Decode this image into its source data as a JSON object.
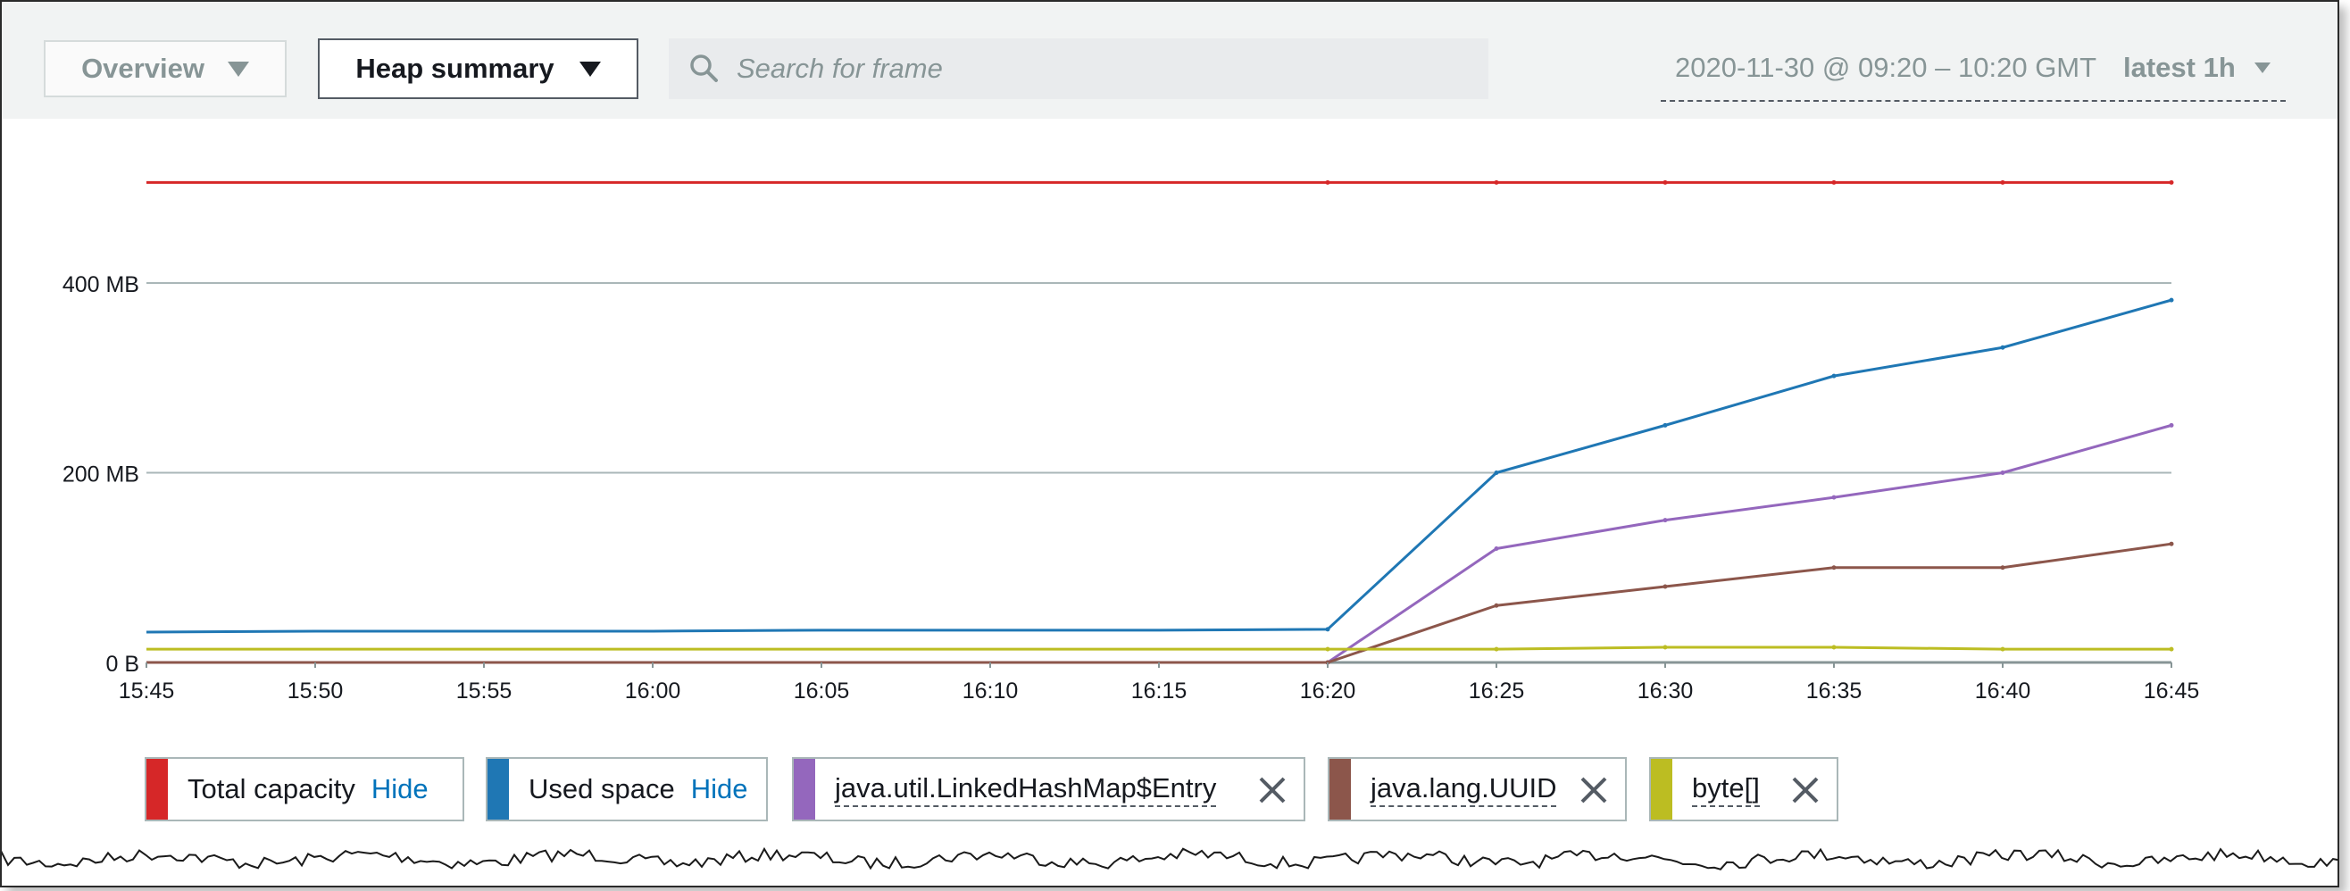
{
  "toolbar": {
    "view_dropdown": {
      "label": "Overview"
    },
    "mode_dropdown": {
      "label": "Heap summary"
    },
    "search": {
      "placeholder": "Search for frame",
      "value": ""
    },
    "time_range": {
      "range": "2020-11-30 @ 09:20 – 10:20 GMT",
      "preset": "latest 1h"
    }
  },
  "legend": {
    "items": [
      {
        "label": "Total capacity",
        "action": "Hide",
        "color": "#d62728"
      },
      {
        "label": "Used space",
        "action": "Hide",
        "color": "#1f77b4"
      },
      {
        "label": "java.util.LinkedHashMap$Entry",
        "color": "#9467bd"
      },
      {
        "label": "java.lang.UUID",
        "color": "#8c564b"
      },
      {
        "label": "byte[]",
        "color": "#bcbd22"
      }
    ]
  },
  "colors": {
    "accent_link": "#0073bb",
    "gridline": "#aab7b8",
    "toolbar_bg": "#f1f3f3"
  },
  "chart_data": {
    "type": "line",
    "title": "",
    "xlabel": "",
    "ylabel": "",
    "categories": [
      "15:45",
      "15:50",
      "15:55",
      "16:00",
      "16:05",
      "16:10",
      "16:15",
      "16:20",
      "16:25",
      "16:30",
      "16:35",
      "16:40",
      "16:45"
    ],
    "yticks": [
      {
        "value": 0,
        "label": "0 B"
      },
      {
        "value": 200,
        "label": "200 MB"
      },
      {
        "value": 400,
        "label": "400 MB"
      }
    ],
    "yunit": "MB",
    "ylim": [
      0,
      510
    ],
    "grid": "horizontal",
    "legend_position": "bottom",
    "series": [
      {
        "name": "Total capacity",
        "color": "#d62728",
        "values": [
          506,
          506,
          506,
          506,
          506,
          506,
          506,
          506,
          506,
          506,
          506,
          506,
          506
        ]
      },
      {
        "name": "Used space",
        "color": "#1f77b4",
        "values": [
          32,
          33,
          33,
          33,
          34,
          34,
          34,
          35,
          200,
          250,
          302,
          332,
          382
        ]
      },
      {
        "name": "java.util.LinkedHashMap$Entry",
        "color": "#9467bd",
        "values": [
          0,
          0,
          0,
          0,
          0,
          0,
          0,
          0,
          120,
          150,
          174,
          200,
          250
        ]
      },
      {
        "name": "java.lang.UUID",
        "color": "#8c564b",
        "values": [
          0,
          0,
          0,
          0,
          0,
          0,
          0,
          0,
          60,
          80,
          100,
          100,
          125
        ]
      },
      {
        "name": "byte[]",
        "color": "#bcbd22",
        "values": [
          14,
          14,
          14,
          14,
          14,
          14,
          14,
          14,
          14,
          16,
          16,
          14,
          14
        ]
      }
    ]
  }
}
